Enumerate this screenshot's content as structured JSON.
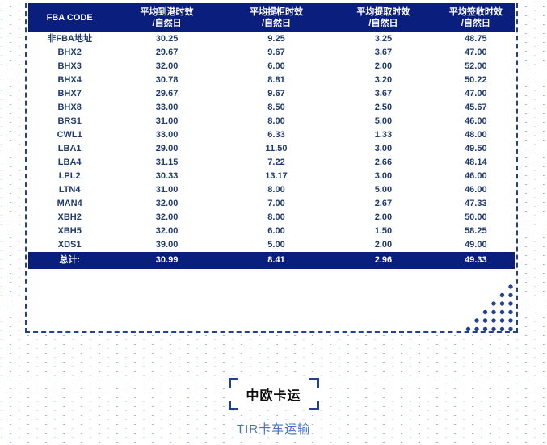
{
  "theme": {
    "header_bg": "#0a1e7e",
    "row_text": "#1f3a6e",
    "border_navy": "#24418f",
    "link_blue": "#4472c4",
    "dot_light": "#9db9da",
    "dot_lighter": "#cfdded"
  },
  "table": {
    "headers": [
      {
        "line1": "FBA CODE",
        "line2": ""
      },
      {
        "line1": "平均到港时效",
        "line2": "/自然日"
      },
      {
        "line1": "平均提柜时效",
        "line2": "/自然日"
      },
      {
        "line1": "平均提取时效",
        "line2": "/自然日"
      },
      {
        "line1": "平均签收时效",
        "line2": "/自然日"
      }
    ],
    "rows": [
      {
        "code": "非FBA地址",
        "values": [
          "30.25",
          "9.25",
          "3.25",
          "48.75"
        ]
      },
      {
        "code": "BHX2",
        "values": [
          "29.67",
          "9.67",
          "3.67",
          "47.00"
        ]
      },
      {
        "code": "BHX3",
        "values": [
          "32.00",
          "6.00",
          "2.00",
          "52.00"
        ]
      },
      {
        "code": "BHX4",
        "values": [
          "30.78",
          "8.81",
          "3.20",
          "50.22"
        ]
      },
      {
        "code": "BHX7",
        "values": [
          "29.67",
          "9.67",
          "3.67",
          "47.00"
        ]
      },
      {
        "code": "BHX8",
        "values": [
          "33.00",
          "8.50",
          "2.50",
          "45.67"
        ]
      },
      {
        "code": "BRS1",
        "values": [
          "31.00",
          "8.00",
          "5.00",
          "46.00"
        ]
      },
      {
        "code": "CWL1",
        "values": [
          "33.00",
          "6.33",
          "1.33",
          "48.00"
        ]
      },
      {
        "code": "LBA1",
        "values": [
          "29.00",
          "11.50",
          "3.00",
          "49.50"
        ]
      },
      {
        "code": "LBA4",
        "values": [
          "31.15",
          "7.22",
          "2.66",
          "48.14"
        ]
      },
      {
        "code": "LPL2",
        "values": [
          "30.33",
          "13.17",
          "3.00",
          "46.00"
        ]
      },
      {
        "code": "LTN4",
        "values": [
          "31.00",
          "8.00",
          "5.00",
          "46.00"
        ]
      },
      {
        "code": "MAN4",
        "values": [
          "32.00",
          "7.00",
          "2.67",
          "47.33"
        ]
      },
      {
        "code": "XBH2",
        "values": [
          "32.00",
          "8.00",
          "2.00",
          "50.00"
        ]
      },
      {
        "code": "XBH5",
        "values": [
          "32.00",
          "6.00",
          "1.50",
          "58.25"
        ]
      },
      {
        "code": "XDS1",
        "values": [
          "39.00",
          "5.00",
          "2.00",
          "49.00"
        ]
      }
    ],
    "total": {
      "label": "总计:",
      "values": [
        "30.99",
        "8.41",
        "2.96",
        "49.33"
      ]
    }
  },
  "footer": {
    "badge": "中欧卡运",
    "subtitle": "TIR卡车运输"
  }
}
